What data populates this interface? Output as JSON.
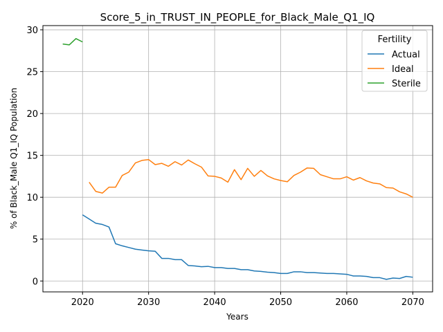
{
  "chart_data": {
    "type": "line",
    "title": "Score_5_in_TRUST_IN_PEOPLE_for_Black_Male_Q1_IQ",
    "xlabel": "Years",
    "ylabel": "% of Black_Male Q1_IQ Population",
    "xlim": [
      2014,
      2073
    ],
    "ylim": [
      -1.3,
      30.5
    ],
    "xticks": [
      2020,
      2030,
      2040,
      2050,
      2060,
      2070
    ],
    "yticks": [
      0,
      5,
      10,
      15,
      20,
      25,
      30
    ],
    "grid": true,
    "legend": {
      "title": "Fertility",
      "placement": "top-right"
    },
    "series": [
      {
        "name": "Actual",
        "color": "#1f77b4",
        "x": [
          2020,
          2021,
          2022,
          2023,
          2024,
          2025,
          2026,
          2027,
          2028,
          2029,
          2030,
          2031,
          2032,
          2033,
          2034,
          2035,
          2036,
          2037,
          2038,
          2039,
          2040,
          2041,
          2042,
          2043,
          2044,
          2045,
          2046,
          2047,
          2048,
          2049,
          2050,
          2051,
          2052,
          2053,
          2054,
          2055,
          2056,
          2057,
          2058,
          2059,
          2060,
          2061,
          2062,
          2063,
          2064,
          2065,
          2066,
          2067,
          2068,
          2069,
          2070
        ],
        "values": [
          7.9,
          7.4,
          6.9,
          6.75,
          6.45,
          4.45,
          4.2,
          4.0,
          3.8,
          3.7,
          3.6,
          3.55,
          2.7,
          2.7,
          2.55,
          2.55,
          1.85,
          1.8,
          1.7,
          1.75,
          1.6,
          1.6,
          1.5,
          1.5,
          1.35,
          1.35,
          1.2,
          1.15,
          1.05,
          1.0,
          0.9,
          0.9,
          1.1,
          1.1,
          1.0,
          1.0,
          0.95,
          0.9,
          0.9,
          0.85,
          0.8,
          0.6,
          0.6,
          0.55,
          0.4,
          0.4,
          0.2,
          0.35,
          0.3,
          0.55,
          0.45
        ]
      },
      {
        "name": "Ideal",
        "color": "#ff7f0e",
        "x": [
          2021,
          2022,
          2023,
          2024,
          2025,
          2026,
          2027,
          2028,
          2029,
          2030,
          2031,
          2032,
          2033,
          2034,
          2035,
          2036,
          2037,
          2038,
          2039,
          2040,
          2041,
          2042,
          2043,
          2044,
          2045,
          2046,
          2047,
          2048,
          2049,
          2050,
          2051,
          2052,
          2053,
          2054,
          2055,
          2056,
          2057,
          2058,
          2059,
          2060,
          2061,
          2062,
          2063,
          2064,
          2065,
          2066,
          2067,
          2068,
          2069,
          2070
        ],
        "values": [
          11.8,
          10.7,
          10.5,
          11.2,
          11.2,
          12.6,
          13.0,
          14.1,
          14.4,
          14.5,
          13.9,
          14.05,
          13.7,
          14.25,
          13.85,
          14.45,
          14.0,
          13.6,
          12.55,
          12.5,
          12.3,
          11.8,
          13.3,
          12.1,
          13.45,
          12.5,
          13.2,
          12.55,
          12.2,
          12.0,
          11.85,
          12.6,
          13.0,
          13.5,
          13.45,
          12.7,
          12.45,
          12.2,
          12.2,
          12.45,
          12.05,
          12.35,
          11.95,
          11.7,
          11.6,
          11.15,
          11.1,
          10.65,
          10.4,
          10.0
        ]
      },
      {
        "name": "Sterile",
        "color": "#2ca02c",
        "x": [
          2017,
          2018,
          2019,
          2020
        ],
        "values": [
          28.3,
          28.2,
          28.95,
          28.55
        ]
      }
    ]
  }
}
